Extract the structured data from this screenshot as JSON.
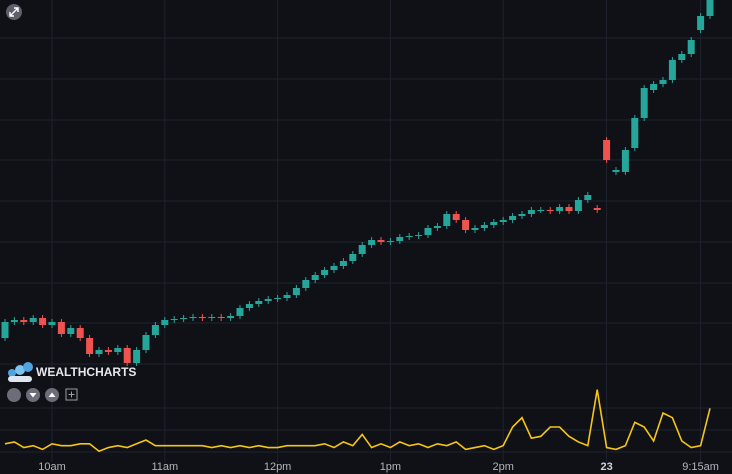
{
  "logo": "WEALTHCHARTS",
  "chart_data": {
    "type": "candlestick",
    "categories": [
      null,
      null,
      null,
      null,
      null,
      "10am",
      null,
      null,
      null,
      null,
      null,
      null,
      null,
      null,
      null,
      null,
      null,
      "11am",
      null,
      null,
      null,
      null,
      null,
      null,
      null,
      null,
      null,
      null,
      null,
      "12pm",
      null,
      null,
      null,
      null,
      null,
      null,
      null,
      null,
      null,
      null,
      null,
      "1pm",
      null,
      null,
      null,
      null,
      null,
      null,
      null,
      null,
      null,
      null,
      null,
      "2pm",
      null,
      null,
      null,
      null,
      null,
      null,
      null,
      null,
      null,
      null,
      "23",
      null,
      null,
      null,
      null,
      null,
      null,
      null,
      null,
      null,
      "9:15am",
      null
    ],
    "open": [
      42,
      58,
      60,
      58,
      62,
      55,
      58,
      46,
      52,
      42,
      26,
      30,
      28,
      32,
      17,
      30,
      45,
      55,
      60,
      61,
      62,
      63,
      62,
      63,
      62,
      64,
      72,
      76,
      79,
      81,
      82,
      85,
      92,
      100,
      105,
      110,
      114,
      119,
      126,
      135,
      140,
      138,
      139,
      143,
      144,
      145,
      152,
      154,
      166,
      160,
      150,
      152,
      155,
      158,
      160,
      164,
      166,
      170,
      170,
      169,
      173,
      169,
      180,
      172,
      240,
      208,
      208,
      232,
      262,
      290,
      296,
      300,
      320,
      326,
      350,
      364
    ],
    "high": [
      61,
      63,
      63,
      65,
      65,
      61,
      61,
      55,
      55,
      45,
      33,
      33,
      35,
      35,
      33,
      48,
      58,
      63,
      64,
      65,
      66,
      66,
      66,
      66,
      67,
      75,
      79,
      82,
      84,
      85,
      88,
      95,
      103,
      108,
      113,
      117,
      122,
      129,
      138,
      143,
      143,
      142,
      146,
      147,
      148,
      155,
      157,
      169,
      169,
      163,
      155,
      158,
      161,
      163,
      167,
      169,
      173,
      173,
      173,
      176,
      176,
      183,
      188,
      175,
      243,
      213,
      233,
      265,
      295,
      299,
      303,
      323,
      329,
      343,
      367,
      380
    ],
    "low": [
      39,
      55,
      55,
      55,
      52,
      52,
      43,
      43,
      39,
      23,
      23,
      25,
      25,
      14,
      14,
      27,
      42,
      52,
      57,
      58,
      59,
      59,
      59,
      59,
      59,
      61,
      69,
      73,
      76,
      78,
      79,
      82,
      89,
      97,
      102,
      107,
      111,
      116,
      123,
      132,
      135,
      135,
      136,
      140,
      141,
      142,
      149,
      151,
      157,
      147,
      147,
      149,
      152,
      155,
      157,
      161,
      163,
      167,
      166,
      166,
      166,
      166,
      177,
      167,
      217,
      205,
      205,
      229,
      259,
      287,
      293,
      297,
      317,
      323,
      347,
      361
    ],
    "close": [
      58,
      60,
      58,
      62,
      55,
      58,
      46,
      52,
      42,
      26,
      30,
      28,
      32,
      17,
      30,
      45,
      55,
      60,
      61,
      62,
      63,
      62,
      63,
      62,
      64,
      72,
      76,
      79,
      81,
      82,
      85,
      92,
      100,
      105,
      110,
      114,
      119,
      126,
      135,
      140,
      138,
      139,
      143,
      144,
      145,
      152,
      154,
      166,
      160,
      150,
      152,
      155,
      158,
      160,
      164,
      166,
      170,
      170,
      169,
      173,
      169,
      180,
      185,
      170,
      220,
      210,
      230,
      262,
      292,
      296,
      300,
      320,
      326,
      340,
      364,
      380
    ],
    "up_color": "#26a69a",
    "down_color": "#ef5350",
    "ylim": [
      0,
      380
    ],
    "volume": {
      "color": "#f5c518",
      "ylim": [
        0,
        75
      ],
      "values": [
        12,
        14,
        8,
        10,
        6,
        12,
        10,
        10,
        12,
        12,
        4,
        8,
        10,
        8,
        12,
        16,
        10,
        10,
        10,
        10,
        10,
        10,
        8,
        10,
        8,
        10,
        8,
        10,
        8,
        8,
        10,
        10,
        10,
        10,
        12,
        8,
        14,
        10,
        22,
        8,
        12,
        8,
        14,
        10,
        12,
        8,
        12,
        10,
        14,
        6,
        8,
        10,
        6,
        10,
        30,
        40,
        18,
        20,
        30,
        30,
        20,
        14,
        10,
        70,
        8,
        6,
        10,
        35,
        30,
        15,
        45,
        40,
        15,
        8,
        10,
        50
      ]
    }
  }
}
